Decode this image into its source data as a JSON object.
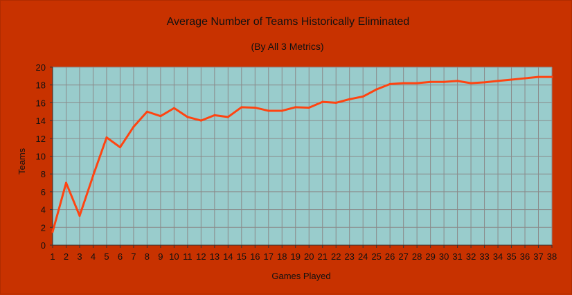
{
  "colors": {
    "background": "#c83200",
    "plot_area": "#99cccc",
    "grid": "#8a8a8a",
    "line": "#ff4411",
    "axis": "#333333"
  },
  "chart_data": {
    "type": "line",
    "title": "Average Number of Teams Historically Eliminated",
    "subtitle": "(By All 3 Metrics)",
    "xlabel": "Games Played",
    "ylabel": "Teams",
    "x": [
      1,
      2,
      3,
      4,
      5,
      6,
      7,
      8,
      9,
      10,
      11,
      12,
      13,
      14,
      15,
      16,
      17,
      18,
      19,
      20,
      21,
      22,
      23,
      24,
      25,
      26,
      27,
      28,
      29,
      30,
      31,
      32,
      33,
      34,
      35,
      36,
      37,
      38
    ],
    "xlim": [
      1,
      38
    ],
    "ylim": [
      0,
      20
    ],
    "yticks": [
      0,
      2,
      4,
      6,
      8,
      10,
      12,
      14,
      16,
      18,
      20
    ],
    "grid": true,
    "legend": "none",
    "series": [
      {
        "values": [
          1.5,
          7.0,
          3.3,
          7.8,
          12.1,
          11.0,
          13.3,
          15.0,
          14.5,
          15.4,
          14.4,
          14.0,
          14.6,
          14.4,
          15.5,
          15.45,
          15.1,
          15.1,
          15.5,
          15.45,
          16.1,
          16.0,
          16.4,
          16.7,
          17.5,
          18.1,
          18.2,
          18.2,
          18.35,
          18.35,
          18.45,
          18.2,
          18.3,
          18.45,
          18.6,
          18.75,
          18.9,
          18.9
        ]
      }
    ]
  }
}
